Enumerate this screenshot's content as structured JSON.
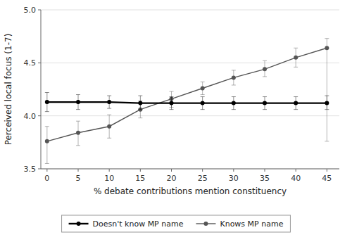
{
  "chart_data": {
    "type": "line",
    "xlabel": "% debate contributions mention constituency",
    "ylabel": "Perceived local focus (1-7)",
    "x": [
      0,
      5,
      10,
      15,
      20,
      25,
      30,
      35,
      40,
      45
    ],
    "series": [
      {
        "name": "Doesn't know MP name",
        "color": "#000000",
        "marker": "circle",
        "values": [
          4.13,
          4.13,
          4.13,
          4.12,
          4.12,
          4.12,
          4.12,
          4.12,
          4.12,
          4.12
        ],
        "upper": [
          4.22,
          4.2,
          4.19,
          4.19,
          4.18,
          4.18,
          4.18,
          4.18,
          4.18,
          4.19
        ],
        "lower": [
          4.04,
          4.06,
          4.07,
          4.06,
          4.06,
          4.06,
          4.06,
          4.06,
          4.06,
          4.06
        ]
      },
      {
        "name": "Knows MP name",
        "color": "#555555",
        "marker": "circle",
        "values": [
          3.76,
          3.84,
          3.9,
          4.06,
          4.16,
          4.26,
          4.36,
          4.44,
          4.55,
          4.64
        ],
        "upper": [
          3.9,
          3.95,
          4.01,
          4.14,
          4.23,
          4.32,
          4.43,
          4.52,
          4.64,
          4.73
        ],
        "lower": [
          3.55,
          3.72,
          3.79,
          3.98,
          4.08,
          4.2,
          4.29,
          4.37,
          4.46,
          3.76
        ]
      }
    ],
    "xlim": [
      -1,
      47
    ],
    "ylim": [
      3.5,
      5.0
    ],
    "xticks": [
      0,
      5,
      10,
      15,
      20,
      25,
      30,
      35,
      40,
      45
    ],
    "yticks": [
      3.5,
      {
        "value": 4.0,
        "label": "4.0"
      },
      4.5,
      {
        "value": 5.0,
        "label": "5.0"
      }
    ],
    "grid": true,
    "legend": "bottom"
  }
}
